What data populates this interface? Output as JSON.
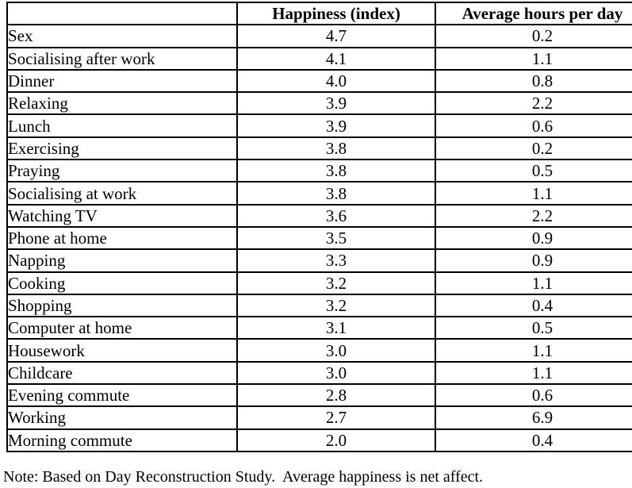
{
  "colors": {
    "background": "#ffffff",
    "border": "#000000",
    "text": "#000000"
  },
  "table": {
    "columns": [
      "",
      "Happiness (index)",
      "Average hours per day"
    ],
    "rows": [
      {
        "activity": "Sex",
        "happiness": "4.7",
        "hours": "0.2"
      },
      {
        "activity": "Socialising after work",
        "happiness": "4.1",
        "hours": "1.1"
      },
      {
        "activity": "Dinner",
        "happiness": "4.0",
        "hours": "0.8"
      },
      {
        "activity": "Relaxing",
        "happiness": "3.9",
        "hours": "2.2"
      },
      {
        "activity": "Lunch",
        "happiness": "3.9",
        "hours": "0.6"
      },
      {
        "activity": "Exercising",
        "happiness": "3.8",
        "hours": "0.2"
      },
      {
        "activity": "Praying",
        "happiness": "3.8",
        "hours": "0.5"
      },
      {
        "activity": "Socialising at work",
        "happiness": "3.8",
        "hours": "1.1"
      },
      {
        "activity": "Watching TV",
        "happiness": "3.6",
        "hours": "2.2"
      },
      {
        "activity": "Phone at home",
        "happiness": "3.5",
        "hours": "0.9"
      },
      {
        "activity": "Napping",
        "happiness": "3.3",
        "hours": "0.9"
      },
      {
        "activity": "Cooking",
        "happiness": "3.2",
        "hours": "1.1"
      },
      {
        "activity": "Shopping",
        "happiness": "3.2",
        "hours": "0.4"
      },
      {
        "activity": "Computer at home",
        "happiness": "3.1",
        "hours": "0.5"
      },
      {
        "activity": "Housework",
        "happiness": "3.0",
        "hours": "1.1"
      },
      {
        "activity": "Childcare",
        "happiness": "3.0",
        "hours": "1.1"
      },
      {
        "activity": "Evening commute",
        "happiness": "2.8",
        "hours": "0.6"
      },
      {
        "activity": "Working",
        "happiness": "2.7",
        "hours": "6.9"
      },
      {
        "activity": "Morning commute",
        "happiness": "2.0",
        "hours": "0.4"
      }
    ]
  },
  "note": "Note: Based on Day Reconstruction Study.  Average happiness is net affect."
}
